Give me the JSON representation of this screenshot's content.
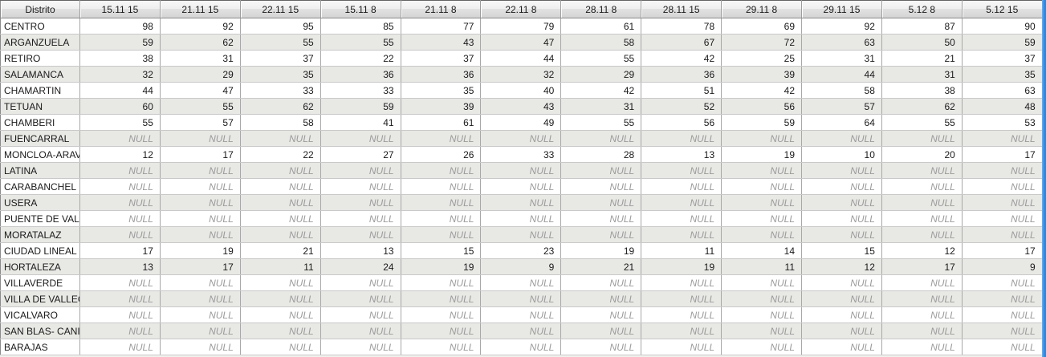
{
  "table": {
    "null_display": "NULL",
    "columns": [
      "Distrito",
      "15.11 15",
      "21.11 15",
      "22.11 15",
      "15.11 8",
      "21.11 8",
      "22.11 8",
      "28.11 8",
      "28.11 15",
      "29.11 8",
      "29.11 15",
      "5.12 8",
      "5.12 15"
    ],
    "rows": [
      {
        "district": "CENTRO",
        "values": [
          98,
          92,
          95,
          85,
          77,
          79,
          61,
          78,
          69,
          92,
          87,
          90
        ]
      },
      {
        "district": "ARGANZUELA",
        "values": [
          59,
          62,
          55,
          55,
          43,
          47,
          58,
          67,
          72,
          63,
          50,
          59
        ]
      },
      {
        "district": "RETIRO",
        "values": [
          38,
          31,
          37,
          22,
          37,
          44,
          55,
          42,
          25,
          31,
          21,
          37
        ]
      },
      {
        "district": "SALAMANCA",
        "values": [
          32,
          29,
          35,
          36,
          36,
          32,
          29,
          36,
          39,
          44,
          31,
          35
        ]
      },
      {
        "district": "CHAMARTIN",
        "values": [
          44,
          47,
          33,
          33,
          35,
          40,
          42,
          51,
          42,
          58,
          38,
          63
        ]
      },
      {
        "district": "TETUAN",
        "values": [
          60,
          55,
          62,
          59,
          39,
          43,
          31,
          52,
          56,
          57,
          62,
          48
        ]
      },
      {
        "district": "CHAMBERI",
        "values": [
          55,
          57,
          58,
          41,
          61,
          49,
          55,
          56,
          59,
          64,
          55,
          53
        ]
      },
      {
        "district": "FUENCARRAL",
        "values": [
          null,
          null,
          null,
          null,
          null,
          null,
          null,
          null,
          null,
          null,
          null,
          null
        ]
      },
      {
        "district": "MONCLOA-ARAV...",
        "values": [
          12,
          17,
          22,
          27,
          26,
          33,
          28,
          13,
          19,
          10,
          20,
          17
        ]
      },
      {
        "district": "LATINA",
        "values": [
          null,
          null,
          null,
          null,
          null,
          null,
          null,
          null,
          null,
          null,
          null,
          null
        ]
      },
      {
        "district": "CARABANCHEL",
        "values": [
          null,
          null,
          null,
          null,
          null,
          null,
          null,
          null,
          null,
          null,
          null,
          null
        ]
      },
      {
        "district": "USERA",
        "values": [
          null,
          null,
          null,
          null,
          null,
          null,
          null,
          null,
          null,
          null,
          null,
          null
        ]
      },
      {
        "district": "PUENTE DE VALL...",
        "values": [
          null,
          null,
          null,
          null,
          null,
          null,
          null,
          null,
          null,
          null,
          null,
          null
        ]
      },
      {
        "district": "MORATALAZ",
        "values": [
          null,
          null,
          null,
          null,
          null,
          null,
          null,
          null,
          null,
          null,
          null,
          null
        ]
      },
      {
        "district": "CIUDAD LINEAL",
        "values": [
          17,
          19,
          21,
          13,
          15,
          23,
          19,
          11,
          14,
          15,
          12,
          17
        ]
      },
      {
        "district": "HORTALEZA",
        "values": [
          13,
          17,
          11,
          24,
          19,
          9,
          21,
          19,
          11,
          12,
          17,
          9
        ]
      },
      {
        "district": "VILLAVERDE",
        "values": [
          null,
          null,
          null,
          null,
          null,
          null,
          null,
          null,
          null,
          null,
          null,
          null
        ]
      },
      {
        "district": "VILLA DE VALLEC...",
        "values": [
          null,
          null,
          null,
          null,
          null,
          null,
          null,
          null,
          null,
          null,
          null,
          null
        ]
      },
      {
        "district": "VICALVARO",
        "values": [
          null,
          null,
          null,
          null,
          null,
          null,
          null,
          null,
          null,
          null,
          null,
          null
        ]
      },
      {
        "district": "SAN BLAS- CANI...",
        "values": [
          null,
          null,
          null,
          null,
          null,
          null,
          null,
          null,
          null,
          null,
          null,
          null
        ]
      },
      {
        "district": "BARAJAS",
        "values": [
          null,
          null,
          null,
          null,
          null,
          null,
          null,
          null,
          null,
          null,
          null,
          null
        ]
      }
    ]
  },
  "colors": {
    "row_alt": "#e8e8e5",
    "grid_vertical": "#a8a8a8",
    "grid_horizontal": "#c9c9c9",
    "null_text": "#9b9b9b",
    "header_border": "#8b8b8b",
    "scrollbar_blue": "#2f8ce4"
  }
}
